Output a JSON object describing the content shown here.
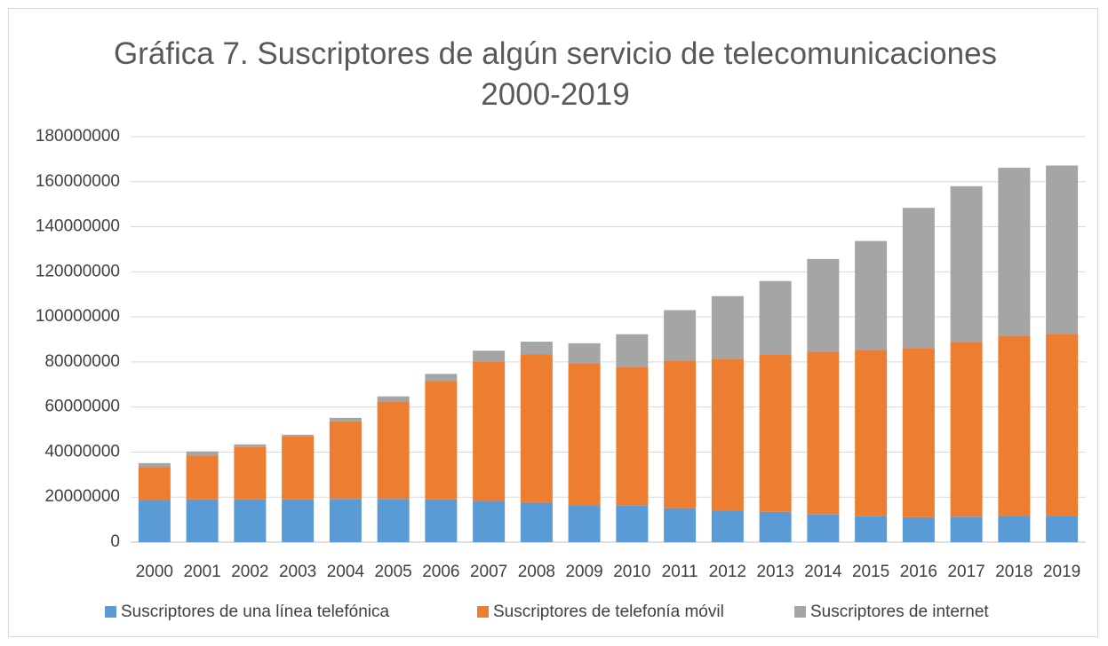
{
  "chart_data": {
    "type": "stacked_bar",
    "title": "Gráfica 7. Suscriptores de algún servicio de telecomunicaciones 2000-2019",
    "categories": [
      "2000",
      "2001",
      "2002",
      "2003",
      "2004",
      "2005",
      "2006",
      "2007",
      "2008",
      "2009",
      "2010",
      "2011",
      "2012",
      "2013",
      "2014",
      "2015",
      "2016",
      "2017",
      "2018",
      "2019"
    ],
    "series": [
      {
        "name": "Suscriptores de una línea telefónica",
        "color": "#5b9bd5",
        "values": [
          18500000,
          19000000,
          19000000,
          19000000,
          19200000,
          19200000,
          19000000,
          18300000,
          17500000,
          16500000,
          16200000,
          15100000,
          14000000,
          13500000,
          12300000,
          11500000,
          11100000,
          11300000,
          11600000,
          11600000
        ]
      },
      {
        "name": "Suscriptores de telefonía móvil",
        "color": "#ed7d31",
        "values": [
          14800000,
          19500000,
          23200000,
          28000000,
          34500000,
          43200000,
          52500000,
          61900000,
          65800000,
          63000000,
          61700000,
          65500000,
          67400000,
          69600000,
          72200000,
          73800000,
          75000000,
          77500000,
          80000000,
          80800000
        ]
      },
      {
        "name": "Suscriptores de internet",
        "color": "#a5a5a5",
        "values": [
          1800000,
          1800000,
          1200000,
          700000,
          1500000,
          2300000,
          3200000,
          4800000,
          5700000,
          8800000,
          14400000,
          22400000,
          27800000,
          32800000,
          41200000,
          48400000,
          62300000,
          69200000,
          74600000,
          74800000
        ]
      }
    ],
    "ylim": [
      0,
      180000000
    ],
    "yticks": [
      0,
      20000000,
      40000000,
      60000000,
      80000000,
      100000000,
      120000000,
      140000000,
      160000000,
      180000000
    ],
    "grid": true
  }
}
